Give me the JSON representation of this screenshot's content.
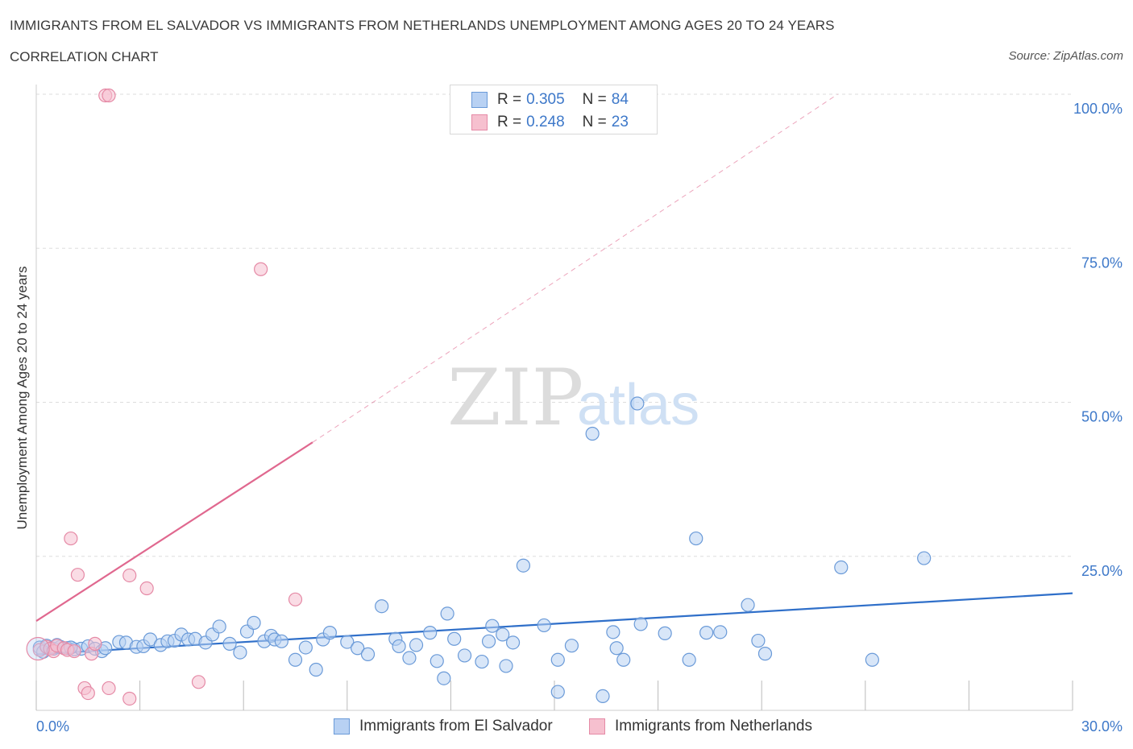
{
  "header": {
    "title": "IMMIGRANTS FROM EL SALVADOR VS IMMIGRANTS FROM NETHERLANDS UNEMPLOYMENT AMONG AGES 20 TO 24 YEARS",
    "subtitle": "CORRELATION CHART",
    "source": "Source: ZipAtlas.com"
  },
  "watermark": {
    "zip": "ZIP",
    "atlas": "atlas"
  },
  "legend": {
    "rows": [
      {
        "r_label": "R =",
        "r_value": "0.305",
        "n_label": "N =",
        "n_value": "84"
      },
      {
        "r_label": "R =",
        "r_value": "0.248",
        "n_label": "N =",
        "n_value": "23"
      }
    ]
  },
  "colors": {
    "blue_fill": "#b8d1f3",
    "blue_stroke": "#6a9ad8",
    "blue_line": "#2f6fc9",
    "pink_fill": "#f6c0cf",
    "pink_stroke": "#e58aa6",
    "pink_line": "#e0688f",
    "axis_label": "#3d78c9",
    "grid": "#dddddd"
  },
  "chart_data": {
    "type": "scatter",
    "title": "IMMIGRANTS FROM EL SALVADOR VS IMMIGRANTS FROM NETHERLANDS UNEMPLOYMENT AMONG AGES 20 TO 24 YEARS",
    "subtitle": "CORRELATION CHART",
    "xlabel": "",
    "ylabel": "Unemployment Among Ages 20 to 24 years",
    "xlim": [
      0,
      30
    ],
    "ylim": [
      0,
      100
    ],
    "x_tick_labels": [
      "0.0%",
      "30.0%"
    ],
    "y_tick_labels": [
      "25.0%",
      "50.0%",
      "75.0%",
      "100.0%"
    ],
    "y_ticks": [
      25,
      50,
      75,
      100
    ],
    "x_minor_ticks": [
      0,
      3,
      6,
      9,
      12,
      15,
      18,
      21,
      24,
      27,
      30
    ],
    "grid": true,
    "legend_position": "top-center",
    "series": [
      {
        "name": "Immigrants from El Salvador",
        "color": "blue",
        "R": 0.305,
        "N": 84,
        "trend": {
          "x0": 0,
          "y0": 9.1,
          "x1": 30,
          "y1": 19.0
        },
        "points": [
          [
            0.1,
            10.2
          ],
          [
            0.3,
            10.5
          ],
          [
            0.5,
            10.0
          ],
          [
            0.7,
            10.3
          ],
          [
            0.9,
            10.1
          ],
          [
            1.1,
            9.9
          ],
          [
            1.3,
            10.0
          ],
          [
            1.5,
            10.4
          ],
          [
            1.7,
            10.0
          ],
          [
            1.9,
            9.6
          ],
          [
            2.4,
            11.1
          ],
          [
            2.6,
            11.0
          ],
          [
            2.9,
            10.3
          ],
          [
            3.1,
            10.4
          ],
          [
            3.3,
            11.5
          ],
          [
            3.6,
            10.6
          ],
          [
            3.8,
            11.2
          ],
          [
            4.0,
            11.3
          ],
          [
            4.2,
            12.3
          ],
          [
            4.4,
            11.5
          ],
          [
            4.6,
            11.6
          ],
          [
            4.9,
            11.0
          ],
          [
            5.1,
            12.3
          ],
          [
            5.3,
            13.6
          ],
          [
            5.6,
            10.8
          ],
          [
            5.9,
            9.4
          ],
          [
            6.1,
            12.8
          ],
          [
            6.3,
            14.2
          ],
          [
            6.6,
            11.2
          ],
          [
            6.8,
            12.1
          ],
          [
            6.9,
            11.5
          ],
          [
            7.1,
            11.2
          ],
          [
            7.5,
            8.2
          ],
          [
            7.8,
            10.2
          ],
          [
            8.1,
            6.6
          ],
          [
            8.3,
            11.5
          ],
          [
            8.5,
            12.6
          ],
          [
            9.0,
            11.1
          ],
          [
            9.3,
            10.1
          ],
          [
            9.6,
            9.1
          ],
          [
            10.0,
            16.9
          ],
          [
            10.4,
            11.6
          ],
          [
            10.5,
            10.4
          ],
          [
            10.8,
            8.5
          ],
          [
            11.0,
            10.6
          ],
          [
            11.4,
            12.6
          ],
          [
            11.6,
            8.0
          ],
          [
            11.8,
            5.2
          ],
          [
            11.9,
            15.7
          ],
          [
            12.1,
            11.6
          ],
          [
            12.4,
            8.9
          ],
          [
            12.9,
            7.9
          ],
          [
            13.1,
            11.2
          ],
          [
            13.2,
            13.7
          ],
          [
            13.5,
            12.3
          ],
          [
            13.6,
            7.2
          ],
          [
            13.8,
            11.0
          ],
          [
            14.1,
            23.5
          ],
          [
            14.7,
            13.8
          ],
          [
            15.1,
            8.2
          ],
          [
            15.1,
            3.0
          ],
          [
            15.5,
            10.5
          ],
          [
            16.1,
            44.9
          ],
          [
            16.4,
            2.3
          ],
          [
            16.8,
            10.1
          ],
          [
            17.4,
            49.8
          ],
          [
            17.5,
            14.0
          ],
          [
            17.0,
            8.2
          ],
          [
            18.2,
            12.5
          ],
          [
            18.9,
            8.2
          ],
          [
            19.1,
            27.9
          ],
          [
            19.4,
            12.6
          ],
          [
            19.8,
            12.7
          ],
          [
            20.6,
            17.1
          ],
          [
            20.9,
            11.3
          ],
          [
            21.1,
            9.2
          ],
          [
            23.3,
            23.2
          ],
          [
            24.2,
            8.2
          ],
          [
            25.7,
            24.7
          ],
          [
            16.7,
            12.7
          ],
          [
            0.2,
            9.5
          ],
          [
            0.6,
            10.6
          ],
          [
            1.0,
            10.2
          ],
          [
            2.0,
            10.1
          ]
        ]
      },
      {
        "name": "Immigrants from Netherlands",
        "color": "pink",
        "R": 0.248,
        "N": 23,
        "trend": {
          "x0": 0,
          "y0": 14.5,
          "x1": 8.0,
          "y1": 43.5,
          "dash_x1": 23.2,
          "dash_y1": 100
        },
        "points": [
          [
            0.1,
            9.8
          ],
          [
            0.3,
            10.3
          ],
          [
            0.4,
            10.0
          ],
          [
            0.5,
            9.6
          ],
          [
            0.6,
            10.5
          ],
          [
            0.8,
            10.1
          ],
          [
            0.9,
            9.8
          ],
          [
            1.0,
            27.9
          ],
          [
            1.1,
            9.6
          ],
          [
            1.2,
            22.0
          ],
          [
            1.4,
            3.6
          ],
          [
            1.5,
            2.8
          ],
          [
            1.6,
            9.2
          ],
          [
            1.7,
            10.8
          ],
          [
            2.0,
            99.8
          ],
          [
            2.1,
            99.8
          ],
          [
            2.1,
            3.6
          ],
          [
            2.7,
            1.9
          ],
          [
            2.7,
            21.9
          ],
          [
            3.2,
            19.8
          ],
          [
            4.7,
            4.6
          ],
          [
            6.5,
            71.6
          ],
          [
            7.5,
            18.0
          ]
        ]
      }
    ]
  }
}
